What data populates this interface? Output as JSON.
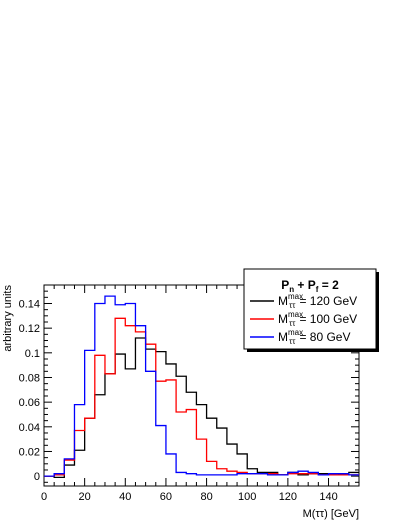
{
  "chart_data": {
    "type": "line",
    "style": "step-histogram",
    "xlabel": "M(ττ) [GeV]",
    "ylabel": "arbitrary units",
    "xlim": [
      0,
      155
    ],
    "ylim": [
      -0.008,
      0.155
    ],
    "x_ticks": [
      0,
      20,
      40,
      60,
      80,
      100,
      120,
      140
    ],
    "y_ticks": [
      0,
      0.02,
      0.04,
      0.06,
      0.08,
      0.1,
      0.12,
      0.14
    ],
    "y_tick_labels": [
      "0",
      "0.02",
      "0.04",
      "0.06",
      "0.08",
      "0.1",
      "0.12",
      "0.14"
    ],
    "bin_edges": [
      0,
      5,
      10,
      15,
      20,
      25,
      30,
      35,
      40,
      45,
      50,
      55,
      60,
      65,
      70,
      75,
      80,
      85,
      90,
      95,
      100,
      105,
      110,
      115,
      120,
      125,
      130,
      135,
      140,
      145,
      150,
      155
    ],
    "legend": {
      "header": "P",
      "header_sub1": "n",
      "header_mid": " + P",
      "header_sub2": "f",
      "header_tail": " = 2",
      "placement": "top-right",
      "symbol_main": "M",
      "symbol_sup": "max",
      "symbol_sub": "ττ"
    },
    "series": [
      {
        "label_value": "= 120 GeV",
        "color": "#000000",
        "values": [
          0.0,
          -0.001,
          0.009,
          0.021,
          0.047,
          0.066,
          0.083,
          0.099,
          0.087,
          0.112,
          0.103,
          0.101,
          0.091,
          0.081,
          0.068,
          0.058,
          0.047,
          0.039,
          0.026,
          0.018,
          0.006,
          0.003,
          0.003,
          0.001,
          0.003,
          0.001,
          0.002,
          0.002,
          0.001,
          0.002,
          0.003
        ]
      },
      {
        "label_value": "= 100 GeV",
        "color": "#ff0000",
        "values": [
          0.0,
          0.001,
          0.013,
          0.037,
          0.047,
          0.098,
          0.083,
          0.128,
          0.122,
          0.117,
          0.107,
          0.077,
          0.078,
          0.052,
          0.054,
          0.03,
          0.012,
          0.006,
          0.004,
          0.003,
          0.002,
          0.002,
          0.002,
          0.001,
          0.002,
          0.002,
          0.002,
          0.001,
          0.001,
          0.001,
          0.001
        ]
      },
      {
        "label_value": "=  80 GeV",
        "color": "#0000ff",
        "values": [
          0.0,
          0.002,
          0.014,
          0.058,
          0.102,
          0.14,
          0.146,
          0.139,
          0.14,
          0.122,
          0.085,
          0.041,
          0.018,
          0.003,
          0.002,
          0.001,
          0.001,
          0.001,
          0.001,
          0.002,
          0.002,
          0.002,
          0.001,
          0.001,
          0.003,
          0.004,
          0.003,
          0.001,
          0.002,
          0.002,
          0.001
        ]
      }
    ]
  }
}
